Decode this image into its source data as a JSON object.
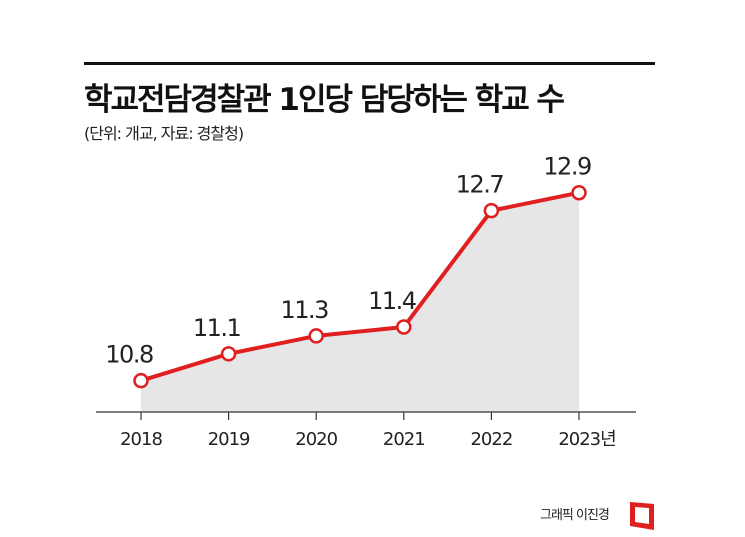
{
  "title": "학교전담경찰관 1인당 담당하는 학교 수",
  "subtitle": "(단위: 개교, 자료: 경찰청)",
  "credit": "그래픽 이진경",
  "chart_data": {
    "type": "area",
    "categories": [
      "2018",
      "2019",
      "2020",
      "2021",
      "2022",
      "2023년"
    ],
    "values": [
      10.8,
      11.1,
      11.3,
      11.4,
      12.7,
      12.9
    ],
    "data_labels": [
      "10.8",
      "11.1",
      "11.3",
      "11.4",
      "12.7",
      "12.9"
    ],
    "title": "학교전담경찰관 1인당 담당하는 학교 수",
    "xlabel": "",
    "ylabel": "",
    "ylim": [
      10.45,
      13.2
    ],
    "grid": false,
    "colors": {
      "line": "#e02020",
      "fill": "#e6e6e8",
      "marker_fill": "#ffffff"
    }
  }
}
